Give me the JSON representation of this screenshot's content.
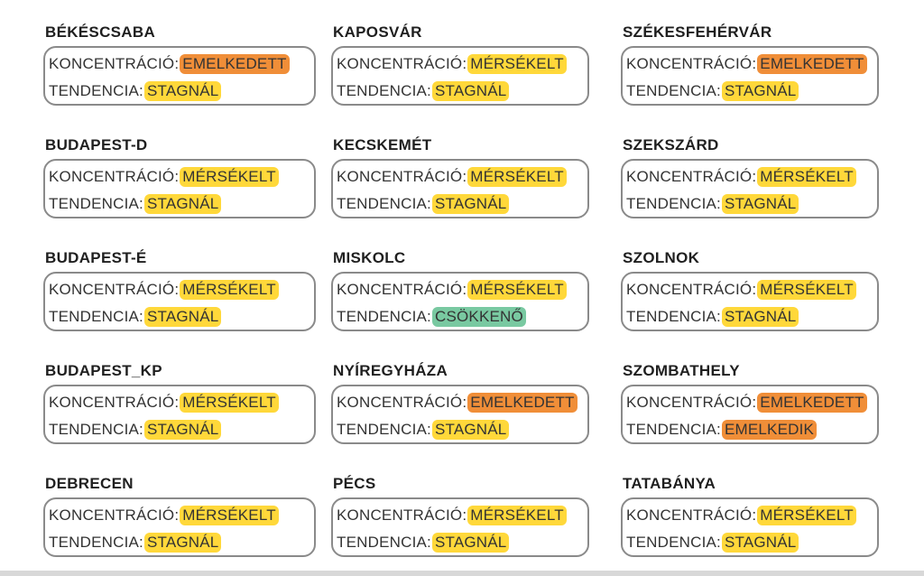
{
  "labels": {
    "concentration": "KONCENTRÁCIÓ:",
    "trend": "TENDENCIA:"
  },
  "colors": {
    "yellow": "#ffd83a",
    "orange": "#f08e38",
    "green": "#79c9a1",
    "border": "#8a8a8a"
  },
  "cities": [
    {
      "name": "BÉKÉSCSABA",
      "concentration": "EMELKEDETT",
      "concentration_color": "orange",
      "trend": "STAGNÁL",
      "trend_color": "yellow"
    },
    {
      "name": "KAPOSVÁR",
      "concentration": "MÉRSÉKELT",
      "concentration_color": "yellow",
      "trend": "STAGNÁL",
      "trend_color": "yellow"
    },
    {
      "name": "SZÉKESFEHÉRVÁR",
      "concentration": "EMELKEDETT",
      "concentration_color": "orange",
      "trend": "STAGNÁL",
      "trend_color": "yellow"
    },
    {
      "name": "BUDAPEST-D",
      "concentration": "MÉRSÉKELT",
      "concentration_color": "yellow",
      "trend": "STAGNÁL",
      "trend_color": "yellow"
    },
    {
      "name": "KECSKEMÉT",
      "concentration": "MÉRSÉKELT",
      "concentration_color": "yellow",
      "trend": "STAGNÁL",
      "trend_color": "yellow"
    },
    {
      "name": "SZEKSZÁRD",
      "concentration": "MÉRSÉKELT",
      "concentration_color": "yellow",
      "trend": "STAGNÁL",
      "trend_color": "yellow"
    },
    {
      "name": "BUDAPEST-É",
      "concentration": "MÉRSÉKELT",
      "concentration_color": "yellow",
      "trend": "STAGNÁL",
      "trend_color": "yellow"
    },
    {
      "name": "MISKOLC",
      "concentration": "MÉRSÉKELT",
      "concentration_color": "yellow",
      "trend": "CSÖKKENŐ",
      "trend_color": "green"
    },
    {
      "name": "SZOLNOK",
      "concentration": "MÉRSÉKELT",
      "concentration_color": "yellow",
      "trend": "STAGNÁL",
      "trend_color": "yellow"
    },
    {
      "name": "BUDAPEST_KP",
      "concentration": "MÉRSÉKELT",
      "concentration_color": "yellow",
      "trend": "STAGNÁL",
      "trend_color": "yellow"
    },
    {
      "name": "NYÍREGYHÁZA",
      "concentration": "EMELKEDETT",
      "concentration_color": "orange",
      "trend": "STAGNÁL",
      "trend_color": "yellow"
    },
    {
      "name": "SZOMBATHELY",
      "concentration": "EMELKEDETT",
      "concentration_color": "orange",
      "trend": "EMELKEDIK",
      "trend_color": "orange"
    },
    {
      "name": "DEBRECEN",
      "concentration": "MÉRSÉKELT",
      "concentration_color": "yellow",
      "trend": "STAGNÁL",
      "trend_color": "yellow"
    },
    {
      "name": "PÉCS",
      "concentration": "MÉRSÉKELT",
      "concentration_color": "yellow",
      "trend": "STAGNÁL",
      "trend_color": "yellow"
    },
    {
      "name": "TATABÁNYA",
      "concentration": "MÉRSÉKELT",
      "concentration_color": "yellow",
      "trend": "STAGNÁL",
      "trend_color": "yellow"
    }
  ]
}
